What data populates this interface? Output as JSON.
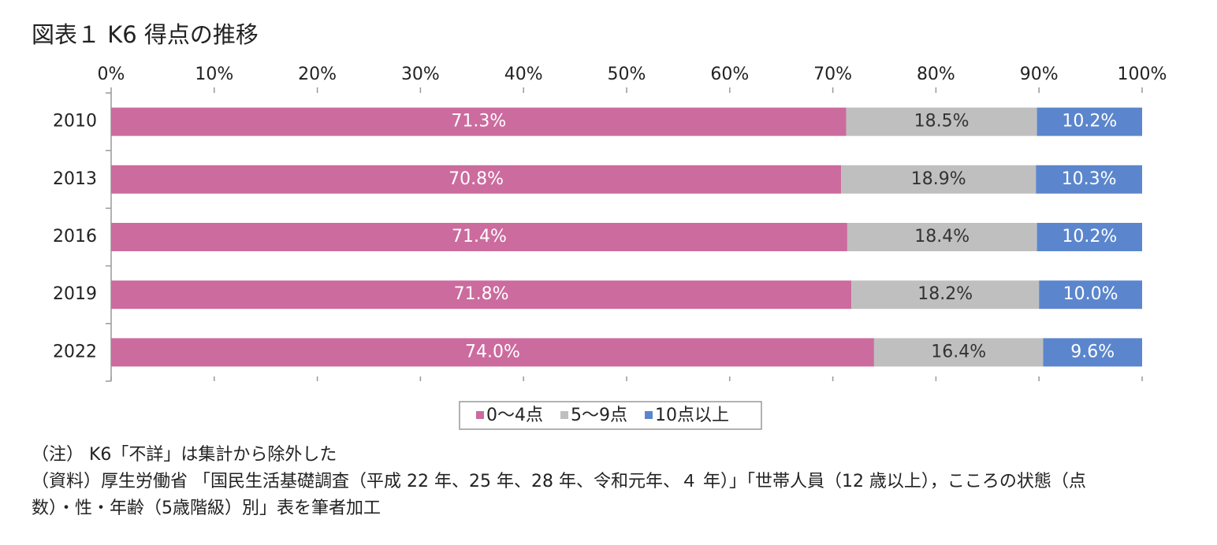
{
  "chart_data": {
    "type": "stacked_barh",
    "title": "図表１ K6 得点の推移",
    "categories": [
      "2010",
      "2013",
      "2016",
      "2019",
      "2022"
    ],
    "series": [
      {
        "name": "0～4点",
        "color": "#cc6b9e",
        "label_color": "#ffffff",
        "values": [
          71.3,
          70.8,
          71.4,
          71.8,
          74.0
        ],
        "value_labels": [
          "71.3%",
          "70.8%",
          "71.4%",
          "71.8%",
          "74.0%"
        ]
      },
      {
        "name": "5～9点",
        "color": "#bfbfbf",
        "label_color": "#333333",
        "values": [
          18.5,
          18.9,
          18.4,
          18.2,
          16.4
        ],
        "value_labels": [
          "18.5%",
          "18.9%",
          "18.4%",
          "18.2%",
          "16.4%"
        ]
      },
      {
        "name": "10点以上",
        "color": "#5b86cd",
        "label_color": "#ffffff",
        "values": [
          10.2,
          10.3,
          10.2,
          10.0,
          9.6
        ],
        "value_labels": [
          "10.2%",
          "10.3%",
          "10.2%",
          "10.0%",
          "9.6%"
        ]
      }
    ],
    "xlim": [
      0,
      100
    ],
    "xticks": [
      {
        "value": 0,
        "label": "0%"
      },
      {
        "value": 10,
        "label": "10%"
      },
      {
        "value": 20,
        "label": "20%"
      },
      {
        "value": 30,
        "label": "30%"
      },
      {
        "value": 40,
        "label": "40%"
      },
      {
        "value": 50,
        "label": "50%"
      },
      {
        "value": 60,
        "label": "60%"
      },
      {
        "value": 70,
        "label": "70%"
      },
      {
        "value": 80,
        "label": "80%"
      },
      {
        "value": 90,
        "label": "90%"
      },
      {
        "value": 100,
        "label": "100%"
      }
    ],
    "legend": "bottom",
    "notes": [
      "（注） K6「不詳」は集計から除外した",
      "（資料）厚生労働省 「国民生活基礎調査（平成 22 年、25 年、28 年、令和元年、４ 年）」「世帯人員（12 歳以上），こころの状態（点",
      "数）・性・年齢（5歳階級）別」表を筆者加工"
    ]
  }
}
